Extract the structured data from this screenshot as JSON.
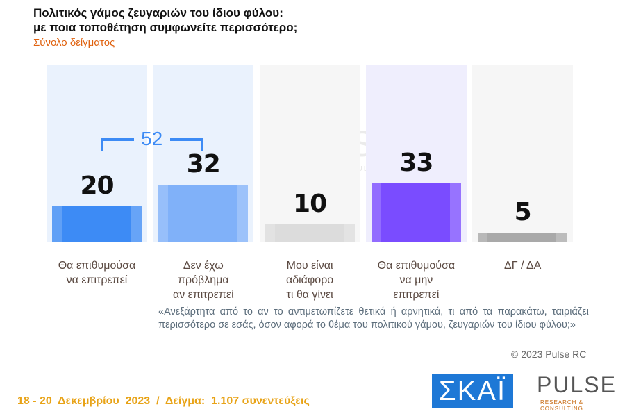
{
  "chart_data": {
    "type": "bar",
    "title": "Πολιτικός γάμος ζευγαριών του ίδιου φύλου:\nμε ποια τοποθέτηση συμφωνείτε περισσότερο;",
    "subtitle": "Σύνολο δείγματος",
    "categories": [
      "Θα επιθυμούσα\nνα επιτρεπεί",
      "Δεν έχω\nπρόβλημα\nαν επιτρεπεί",
      "Μου είναι\nαδιάφορο\nτι θα γίνει",
      "Θα επιθυμούσα\nνα μην\nεπιτρεπεί",
      "ΔΓ / ΔΑ"
    ],
    "values": [
      20,
      32,
      10,
      33,
      5
    ],
    "colors": [
      "#3d8bf5",
      "#80b1f9",
      "#dcdcdc",
      "#7a4cff",
      "#a9a9a9"
    ],
    "background_colors": [
      "#eaf2fd",
      "#eaf2fd",
      "#f6f6f6",
      "#efeefd",
      "#f6f6f6"
    ],
    "ylim": [
      0,
      100
    ],
    "bracket_label": 52,
    "note": "«Ανεξάρτητα από το αν το αντιμετωπίζετε θετικά ή αρνητικά, τι από τα παρακάτω, ταιριάζει περισσότερο σε εσάς, όσον αφορά το θέμα του πολιτικού γάμου, ζευγαριών του ίδιου φύλου;»",
    "copyright": "© 2023 Pulse RC",
    "footer": "18 - 20  Δεκεμβρίου  2023  /  Δείγμα:  1.107 συνεντεύξεις",
    "logos": [
      "ΣΚΑΪ",
      "PULSE",
      "RESEARCH & CONSULTING"
    ]
  }
}
